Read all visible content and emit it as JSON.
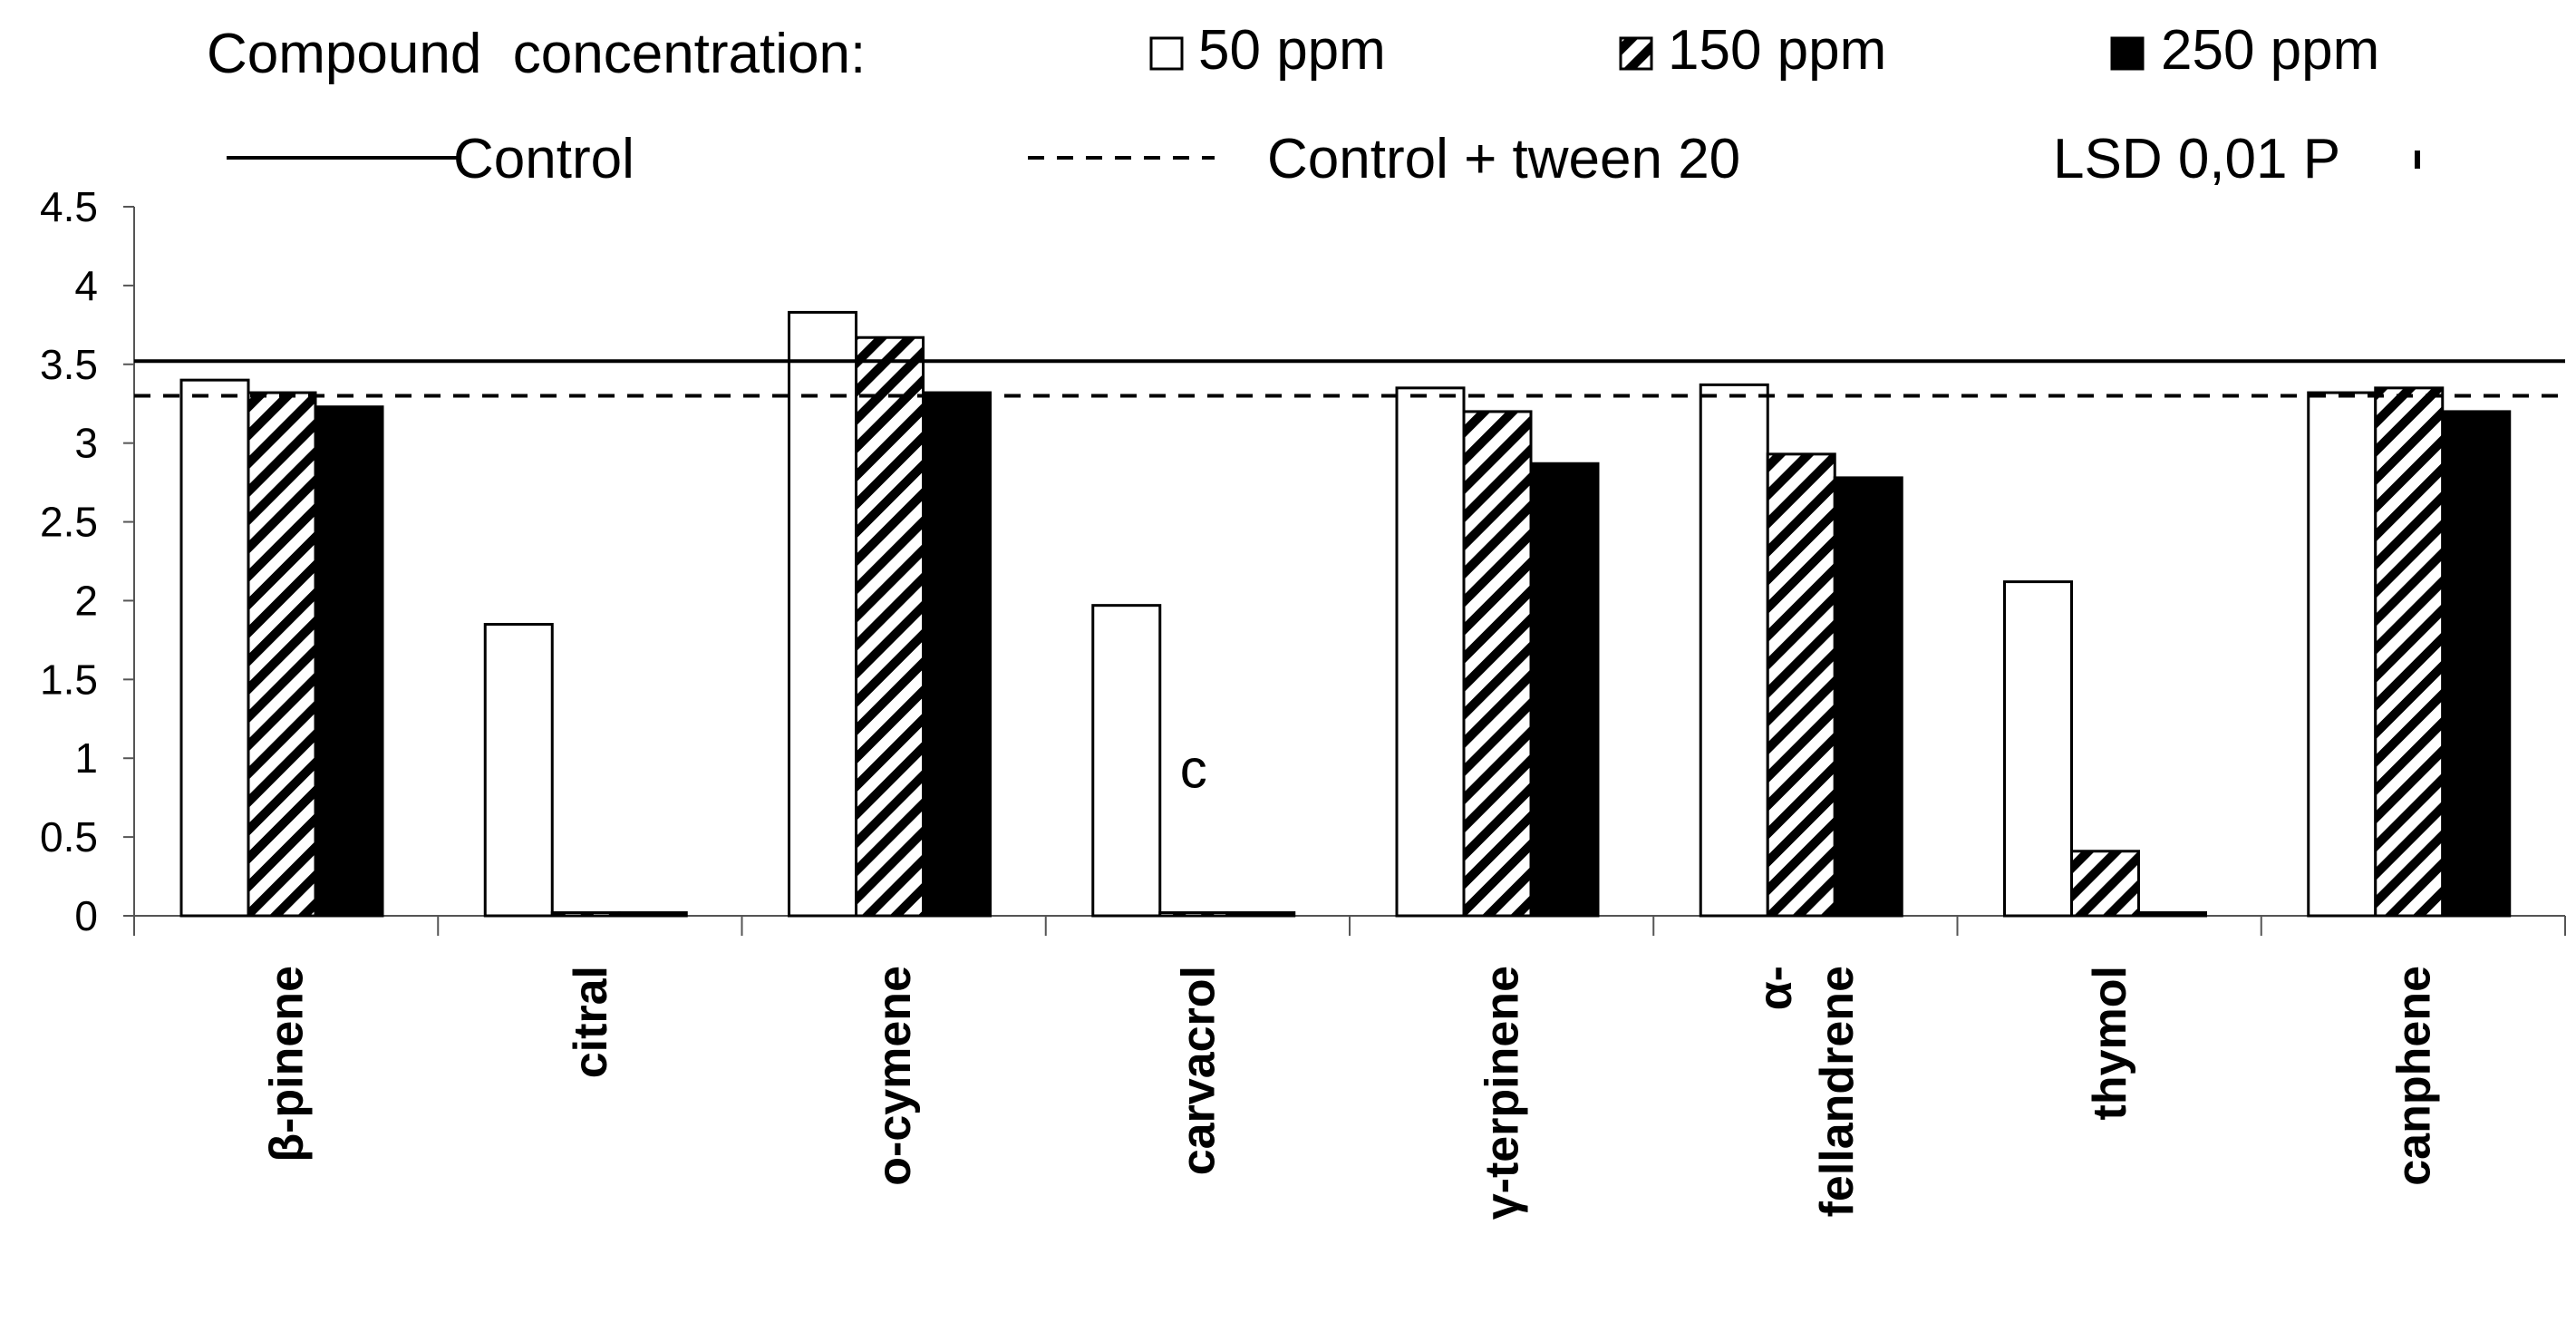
{
  "chart_data": {
    "type": "bar",
    "title": "",
    "xlabel": "",
    "ylabel": "",
    "ylim": [
      0,
      4.5
    ],
    "yticks": [
      0,
      0.5,
      1,
      1.5,
      2,
      2.5,
      3,
      3.5,
      4,
      4.5
    ],
    "ytick_labels": [
      "0",
      "0.5",
      "1",
      "1.5",
      "2",
      "2.5",
      "3",
      "3.5",
      "4",
      "4.5"
    ],
    "grid": false,
    "legend_location": "top",
    "legend_title": "Compound  concentration:",
    "categories": [
      [
        "β-pinene"
      ],
      [
        "citral"
      ],
      [
        "o-cymene"
      ],
      [
        "carvacrol"
      ],
      [
        "γ-terpinene"
      ],
      [
        "α-",
        "fellandrene"
      ],
      [
        "thymol"
      ],
      [
        "canphene"
      ]
    ],
    "series": [
      {
        "name": "50 ppm",
        "style": "white",
        "values": [
          3.4,
          1.85,
          3.83,
          1.97,
          3.35,
          3.37,
          2.12,
          3.32
        ]
      },
      {
        "name": "150 ppm",
        "style": "hatched",
        "values": [
          3.32,
          0.02,
          3.67,
          0.02,
          3.2,
          2.93,
          0.41,
          3.35
        ]
      },
      {
        "name": "250 ppm",
        "style": "black",
        "values": [
          3.23,
          0.02,
          3.32,
          0.02,
          2.87,
          2.78,
          0.02,
          3.2
        ]
      }
    ],
    "reference_lines": [
      {
        "name": "Control",
        "style": "solid",
        "value": 3.52
      },
      {
        "name": "Control + tween 20",
        "style": "dashed",
        "value": 3.3
      }
    ],
    "lsd": {
      "label": "LSD 0,01 P",
      "value": 0.1
    },
    "annotations": [
      {
        "text": "c",
        "category_index": 3,
        "series_index": 1,
        "y": 0.93
      }
    ],
    "colors": {
      "bar_stroke": "#000000",
      "black_fill": "#000000",
      "white_fill": "#ffffff",
      "axis": "#555555"
    }
  }
}
